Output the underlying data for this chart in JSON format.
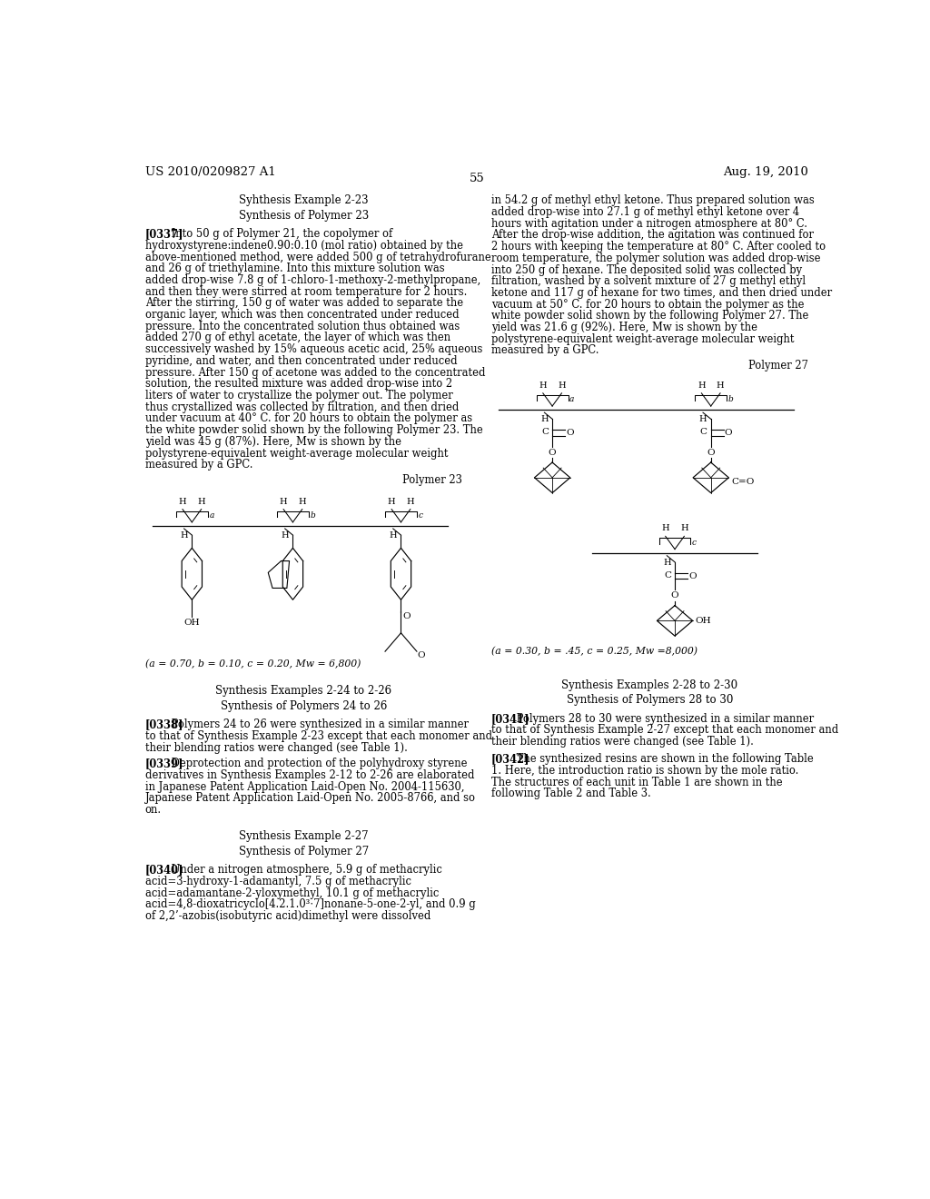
{
  "background_color": "#ffffff",
  "page_number": "55",
  "header_left": "US 2010/0209827 A1",
  "header_right": "Aug. 19, 2010",
  "title1": "Syhthesis Example 2-23",
  "subtitle1": "Synthesis of Polymer 23",
  "para1": "[0337]   Into 50 g of Polymer 21, the copolymer of hydroxystyrene:indene0.90:0.10 (mol ratio) obtained by the above-mentioned method, were added 500 g of tetrahydrofurane and 26 g of triethylamine. Into this mixture solution was added drop-wise 7.8 g of 1-chloro-1-methoxy-2-methylpropane, and then they were stirred at room temperature for 2 hours. After the stirring, 150 g of water was added to separate the organic layer, which was then concentrated under reduced pressure. Into the concentrated solution thus obtained was added 270 g of ethyl acetate, the layer of which was then successively washed by 15% aqueous acetic acid, 25% aqueous pyridine, and water, and then concentrated under reduced pressure. After 150 g of acetone was added to the concentrated solution, the resulted mixture was added drop-wise into 2 liters of water to crystallize the polymer out. The polymer thus crystallized was collected by filtration, and then dried under vacuum at 40° C. for 20 hours to obtain the polymer as the white powder solid shown by the following Polymer 23. The yield was 45 g (87%). Here, Mw is shown by the polystyrene-equivalent weight-average molecular weight measured by a GPC.",
  "polymer23_label": "Polymer 23",
  "polymer23_params": "(a = 0.70, b = 0.10, c = 0.20, Mw = 6,800)",
  "title2": "Synthesis Examples 2-24 to 2-26",
  "subtitle2": "Synthesis of Polymers 24 to 26",
  "para2": "[0338]   Polymers 24 to 26 were synthesized in a similar manner to that of Synthesis Example 2-23 except that each monomer and their blending ratios were changed (see Table 1).",
  "para3": "[0339]   Deprotection and protection of the polyhydroxy styrene derivatives in Synthesis Examples 2-12 to 2-26 are elaborated in Japanese Patent Application Laid-Open No. 2004-115630, Japanese Patent Application Laid-Open No. 2005-8766, and so on.",
  "title3": "Synthesis Example 2-27",
  "subtitle3": "Synthesis of Polymer 27",
  "para4": "[0340]   Under a nitrogen atmosphere, 5.9 g of methacrylic acid=3-hydroxy-1-adamantyl,  7.5  g  of  methacrylic acid=adamantane-2-yloxymethyl, 10.1 g of methacrylic acid=4,8-dioxatricyclo[4.2.1.0³⋅7]nonane-5-one-2-yl,  and 0.9 g of 2,2’-azobis(isobutyric acid)dimethyl were dissolved",
  "right_para1": "in 54.2 g of methyl ethyl ketone. Thus prepared solution was added drop-wise into 27.1 g of methyl ethyl ketone over 4 hours with agitation under a nitrogen atmosphere at 80° C. After the drop-wise addition, the agitation was continued for 2 hours with keeping the temperature at 80° C. After cooled to room temperature, the polymer solution was added drop-wise into 250 g of hexane. The deposited solid was collected by filtration, washed by a solvent mixture of 27 g methyl ethyl ketone and 117 g of hexane for two times, and then dried under vacuum at 50° C. for 20 hours to obtain the polymer as the white powder solid shown by the following Polymer 27. The yield was 21.6 g (92%). Here, Mw is shown by the polystyrene-equivalent weight-average molecular weight measured by a GPC.",
  "polymer27_label": "Polymer 27",
  "polymer27_params": "(a = 0.30, b = .45, c = 0.25, Mw =8,000)",
  "title4": "Synthesis Examples 2-28 to 2-30",
  "subtitle4": "Synthesis of Polymers 28 to 30",
  "para5": "[0341]   Polymers 28 to 30 were synthesized in a similar manner to that of Synthesis Example 2-27 except that each monomer and their blending ratios were changed (see Table 1).",
  "para6": "[0342]   The synthesized resins are shown in the following Table 1. Here, the introduction ratio is shown by the mole ratio. The structures of each unit in Table 1 are shown in the following Table 2 and Table 3."
}
